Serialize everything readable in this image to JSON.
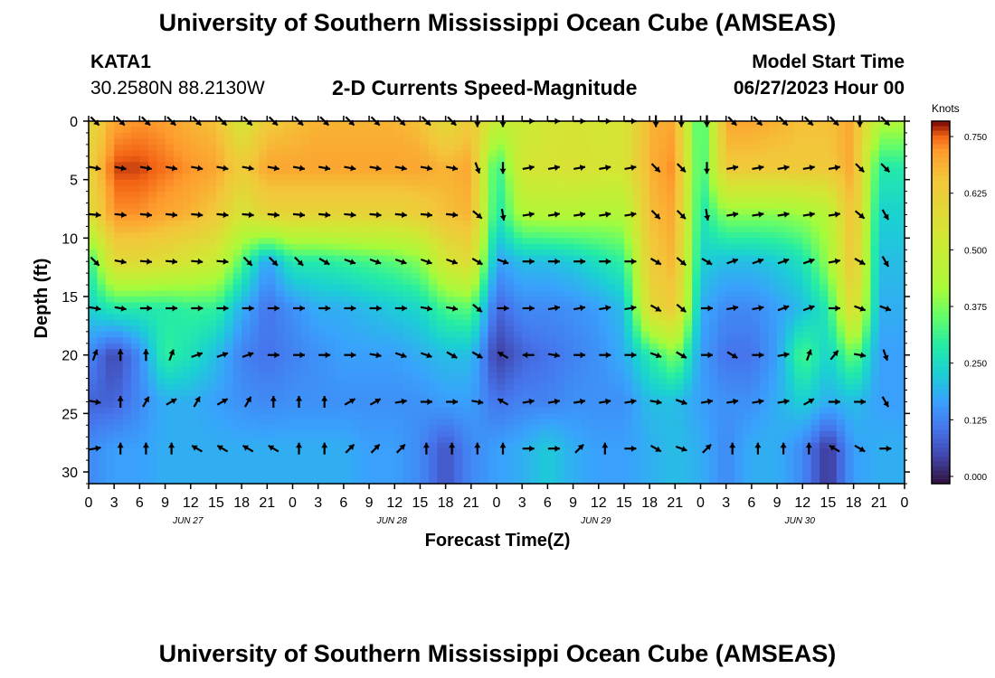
{
  "header": {
    "title": "University of Southern Mississippi Ocean Cube (AMSEAS)",
    "station": "KATA1",
    "coords": "30.2580N  88.2130W",
    "subtitle": "2-D Currents Speed-Magnitude",
    "model_start_label": "Model Start Time",
    "model_start_time": "06/27/2023 Hour 00"
  },
  "footer": {
    "title": "University of Southern Mississippi Ocean Cube (AMSEAS)"
  },
  "chart_data": {
    "type": "heatmap",
    "title": "2-D Currents Speed-Magnitude",
    "xlabel": "Forecast Time(Z)",
    "ylabel": "Depth (ft)",
    "x_tick_labels": [
      "0",
      "3",
      "6",
      "9",
      "12",
      "15",
      "18",
      "21",
      "0",
      "3",
      "6",
      "9",
      "12",
      "15",
      "18",
      "21",
      "0",
      "3",
      "6",
      "9",
      "12",
      "15",
      "18",
      "21",
      "0",
      "3",
      "6",
      "9",
      "12",
      "15",
      "18",
      "21",
      "0"
    ],
    "date_labels": [
      "JUN 27",
      "JUN 28",
      "JUN 29",
      "JUN 30"
    ],
    "xlim_hours": [
      0,
      96
    ],
    "ylim_ft": [
      31,
      0
    ],
    "y_ticks": [
      0,
      5,
      10,
      15,
      20,
      25,
      30
    ],
    "colorbar": {
      "units": "Knots",
      "range": [
        0,
        0.8
      ],
      "tick_values": [
        0.0,
        0.125,
        0.25,
        0.375,
        0.5,
        0.625,
        0.75
      ],
      "tick_labels": [
        "0.000",
        "0.125",
        "0.250",
        "0.375",
        "0.500",
        "0.625",
        "0.750"
      ]
    },
    "arrow_depths_ft": [
      0,
      4,
      8,
      12,
      16,
      20,
      24,
      28
    ],
    "arrow_times_hours": [
      0,
      3,
      6,
      9,
      12,
      15,
      18,
      21,
      24,
      27,
      30,
      33,
      36,
      39,
      42,
      45,
      48,
      51,
      54,
      57,
      60,
      63,
      66,
      69,
      72,
      75,
      78,
      81,
      84,
      87,
      90,
      93
    ],
    "speed_knots": [
      [
        0.6,
        0.72,
        0.74,
        0.73,
        0.7,
        0.68,
        0.55,
        0.66,
        0.68,
        0.7,
        0.7,
        0.7,
        0.7,
        0.68,
        0.6,
        0.66,
        0.5,
        0.52,
        0.55,
        0.56,
        0.55,
        0.56,
        0.7,
        0.72,
        0.3,
        0.72,
        0.72,
        0.7,
        0.68,
        0.68,
        0.72,
        0.45
      ],
      [
        0.62,
        0.78,
        0.78,
        0.76,
        0.74,
        0.72,
        0.65,
        0.72,
        0.72,
        0.72,
        0.72,
        0.72,
        0.72,
        0.72,
        0.7,
        0.72,
        0.3,
        0.55,
        0.56,
        0.57,
        0.56,
        0.56,
        0.7,
        0.75,
        0.3,
        0.66,
        0.66,
        0.66,
        0.66,
        0.66,
        0.72,
        0.3
      ],
      [
        0.58,
        0.74,
        0.74,
        0.72,
        0.7,
        0.66,
        0.55,
        0.62,
        0.62,
        0.62,
        0.62,
        0.62,
        0.62,
        0.64,
        0.68,
        0.7,
        0.28,
        0.45,
        0.46,
        0.46,
        0.45,
        0.45,
        0.68,
        0.72,
        0.28,
        0.4,
        0.4,
        0.4,
        0.42,
        0.46,
        0.7,
        0.25
      ],
      [
        0.3,
        0.6,
        0.6,
        0.58,
        0.55,
        0.52,
        0.35,
        0.18,
        0.3,
        0.3,
        0.32,
        0.34,
        0.36,
        0.4,
        0.55,
        0.6,
        0.18,
        0.22,
        0.22,
        0.24,
        0.28,
        0.32,
        0.65,
        0.7,
        0.25,
        0.22,
        0.22,
        0.24,
        0.28,
        0.42,
        0.68,
        0.22
      ],
      [
        0.25,
        0.3,
        0.3,
        0.3,
        0.32,
        0.32,
        0.2,
        0.12,
        0.16,
        0.2,
        0.2,
        0.22,
        0.24,
        0.26,
        0.34,
        0.36,
        0.1,
        0.15,
        0.15,
        0.16,
        0.18,
        0.22,
        0.6,
        0.66,
        0.2,
        0.15,
        0.15,
        0.18,
        0.22,
        0.3,
        0.62,
        0.2
      ],
      [
        0.15,
        0.06,
        0.15,
        0.32,
        0.28,
        0.22,
        0.14,
        0.12,
        0.14,
        0.16,
        0.18,
        0.18,
        0.18,
        0.2,
        0.22,
        0.22,
        0.05,
        0.1,
        0.12,
        0.14,
        0.16,
        0.2,
        0.3,
        0.4,
        0.18,
        0.12,
        0.12,
        0.18,
        0.35,
        0.25,
        0.38,
        0.18
      ],
      [
        0.1,
        0.1,
        0.15,
        0.2,
        0.2,
        0.18,
        0.16,
        0.15,
        0.16,
        0.16,
        0.16,
        0.16,
        0.16,
        0.16,
        0.18,
        0.18,
        0.12,
        0.14,
        0.14,
        0.16,
        0.16,
        0.16,
        0.22,
        0.22,
        0.18,
        0.16,
        0.16,
        0.2,
        0.25,
        0.2,
        0.22,
        0.18
      ],
      [
        0.15,
        0.18,
        0.18,
        0.2,
        0.2,
        0.2,
        0.2,
        0.2,
        0.2,
        0.2,
        0.2,
        0.18,
        0.18,
        0.15,
        0.08,
        0.15,
        0.18,
        0.2,
        0.24,
        0.2,
        0.18,
        0.18,
        0.2,
        0.22,
        0.2,
        0.15,
        0.2,
        0.2,
        0.15,
        0.04,
        0.18,
        0.2
      ]
    ],
    "direction_deg": [
      [
        135,
        135,
        135,
        135,
        135,
        135,
        135,
        135,
        135,
        135,
        135,
        135,
        135,
        135,
        135,
        180,
        180,
        90,
        90,
        90,
        90,
        90,
        180,
        180,
        180,
        135,
        135,
        135,
        135,
        135,
        180,
        135
      ],
      [
        100,
        100,
        100,
        100,
        100,
        100,
        100,
        100,
        100,
        100,
        100,
        100,
        100,
        100,
        100,
        160,
        180,
        80,
        80,
        80,
        80,
        80,
        135,
        135,
        180,
        80,
        80,
        80,
        80,
        80,
        135,
        135
      ],
      [
        95,
        95,
        95,
        95,
        95,
        95,
        95,
        95,
        95,
        95,
        95,
        95,
        95,
        95,
        95,
        130,
        170,
        80,
        80,
        80,
        80,
        80,
        135,
        135,
        170,
        80,
        80,
        80,
        80,
        80,
        130,
        150
      ],
      [
        135,
        100,
        95,
        95,
        95,
        95,
        135,
        135,
        135,
        120,
        110,
        110,
        110,
        110,
        110,
        120,
        110,
        90,
        90,
        90,
        90,
        90,
        120,
        130,
        120,
        70,
        70,
        70,
        70,
        80,
        120,
        150
      ],
      [
        100,
        100,
        90,
        90,
        90,
        90,
        90,
        90,
        90,
        90,
        90,
        90,
        90,
        100,
        100,
        130,
        90,
        90,
        80,
        80,
        80,
        80,
        120,
        130,
        90,
        80,
        80,
        70,
        70,
        90,
        110,
        110
      ],
      [
        20,
        0,
        0,
        20,
        70,
        70,
        70,
        90,
        90,
        90,
        90,
        100,
        110,
        110,
        120,
        120,
        300,
        270,
        100,
        90,
        90,
        90,
        110,
        120,
        90,
        120,
        90,
        80,
        20,
        40,
        100,
        160
      ],
      [
        100,
        0,
        30,
        60,
        30,
        60,
        30,
        0,
        0,
        0,
        60,
        60,
        80,
        90,
        90,
        100,
        300,
        80,
        80,
        80,
        80,
        80,
        100,
        110,
        80,
        80,
        80,
        80,
        60,
        90,
        90,
        150
      ],
      [
        80,
        0,
        0,
        0,
        300,
        300,
        300,
        300,
        0,
        0,
        45,
        45,
        45,
        0,
        0,
        0,
        0,
        90,
        90,
        45,
        0,
        90,
        120,
        110,
        45,
        0,
        0,
        0,
        0,
        300,
        120,
        90
      ]
    ]
  }
}
